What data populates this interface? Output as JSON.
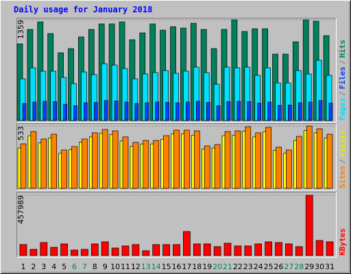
{
  "chart_data": {
    "type": "bar",
    "title": "Daily usage for January 2018",
    "legend_separator": "/",
    "categories": [
      "1",
      "2",
      "3",
      "4",
      "5",
      "6",
      "7",
      "8",
      "9",
      "10",
      "11",
      "12",
      "13",
      "14",
      "15",
      "16",
      "17",
      "18",
      "19",
      "20",
      "21",
      "22",
      "23",
      "24",
      "25",
      "26",
      "27",
      "28",
      "29",
      "30",
      "31"
    ],
    "category_colors": [
      "#000000",
      "#000000",
      "#000000",
      "#000000",
      "#000000",
      "#00805c",
      "#00805c",
      "#000000",
      "#000000",
      "#000000",
      "#000000",
      "#000000",
      "#00805c",
      "#00805c",
      "#000000",
      "#000000",
      "#000000",
      "#000000",
      "#000000",
      "#00805c",
      "#00805c",
      "#000000",
      "#000000",
      "#000000",
      "#000000",
      "#000000",
      "#00805c",
      "#00805c",
      "#000000",
      "#000000",
      "#000000"
    ],
    "panels": [
      {
        "ylim": [
          0,
          1359
        ],
        "yticks": [
          1359
        ],
        "grid": true,
        "series": [
          {
            "name": "Hits",
            "color": "#00805c",
            "values": [
              1035,
              1230,
              1331,
              1174,
              915,
              971,
              1128,
              1230,
              1304,
              1304,
              1331,
              1091,
              1183,
              1304,
              1220,
              1267,
              1248,
              1313,
              1230,
              971,
              1230,
              1359,
              1202,
              1239,
              1239,
              897,
              897,
              1063,
              1359,
              1341,
              1146
            ]
          },
          {
            "name": "Pages",
            "color": "#00e0ff",
            "values": [
              564,
              712,
              666,
              666,
              582,
              499,
              656,
              619,
              767,
              749,
              703,
              564,
              629,
              647,
              675,
              638,
              666,
              721,
              647,
              490,
              721,
              712,
              721,
              610,
              712,
              508,
              508,
              675,
              629,
              814,
              610
            ]
          },
          {
            "name": "Files",
            "color": "#0040ff",
            "values": [
              230,
              250,
              260,
              255,
              220,
              200,
              240,
              245,
              270,
              265,
              250,
              230,
              240,
              250,
              245,
              240,
              250,
              260,
              245,
              200,
              255,
              260,
              255,
              235,
              250,
              205,
              210,
              240,
              250,
              270,
              235
            ]
          }
        ],
        "legend_order": [
          1,
          2,
          0
        ]
      },
      {
        "ylim": [
          0,
          533
        ],
        "yticks": [
          533
        ],
        "grid": true,
        "series": [
          {
            "name": "Visits",
            "color": "#ffff00",
            "values": [
              345,
              450,
              390,
              430,
              300,
              330,
              395,
              440,
              470,
              460,
              405,
              360,
              380,
              380,
              420,
              465,
              465,
              455,
              335,
              345,
              450,
              455,
              490,
              440,
              485,
              325,
              300,
              410,
              495,
              475,
              430
            ]
          },
          {
            "name": "Sites",
            "color": "#ff8000",
            "values": [
              381,
              486,
              422,
              463,
              328,
              357,
              422,
              475,
              504,
              492,
              440,
              393,
              410,
              410,
              451,
              498,
              498,
              492,
              363,
              375,
              486,
              492,
              527,
              475,
              522,
              352,
              328,
              445,
              533,
              510,
              463
            ]
          }
        ],
        "legend_order": [
          1,
          0
        ]
      },
      {
        "ylim": [
          0,
          457989
        ],
        "yticks": [
          457989
        ],
        "grid": true,
        "series": [
          {
            "name": "KBytes",
            "color": "#ff0000",
            "values": [
              83264,
              46836,
              98876,
              62448,
              88468,
              41632,
              46836,
              88468,
              104080,
              57244,
              72856,
              83264,
              36428,
              83264,
              83264,
              83264,
              182140,
              88468,
              88468,
              67652,
              93672,
              72856,
              72856,
              88468,
              104080,
              98876,
              88468,
              67652,
              457989,
              114488,
              104080
            ]
          }
        ],
        "legend_order": [
          0
        ]
      }
    ]
  }
}
